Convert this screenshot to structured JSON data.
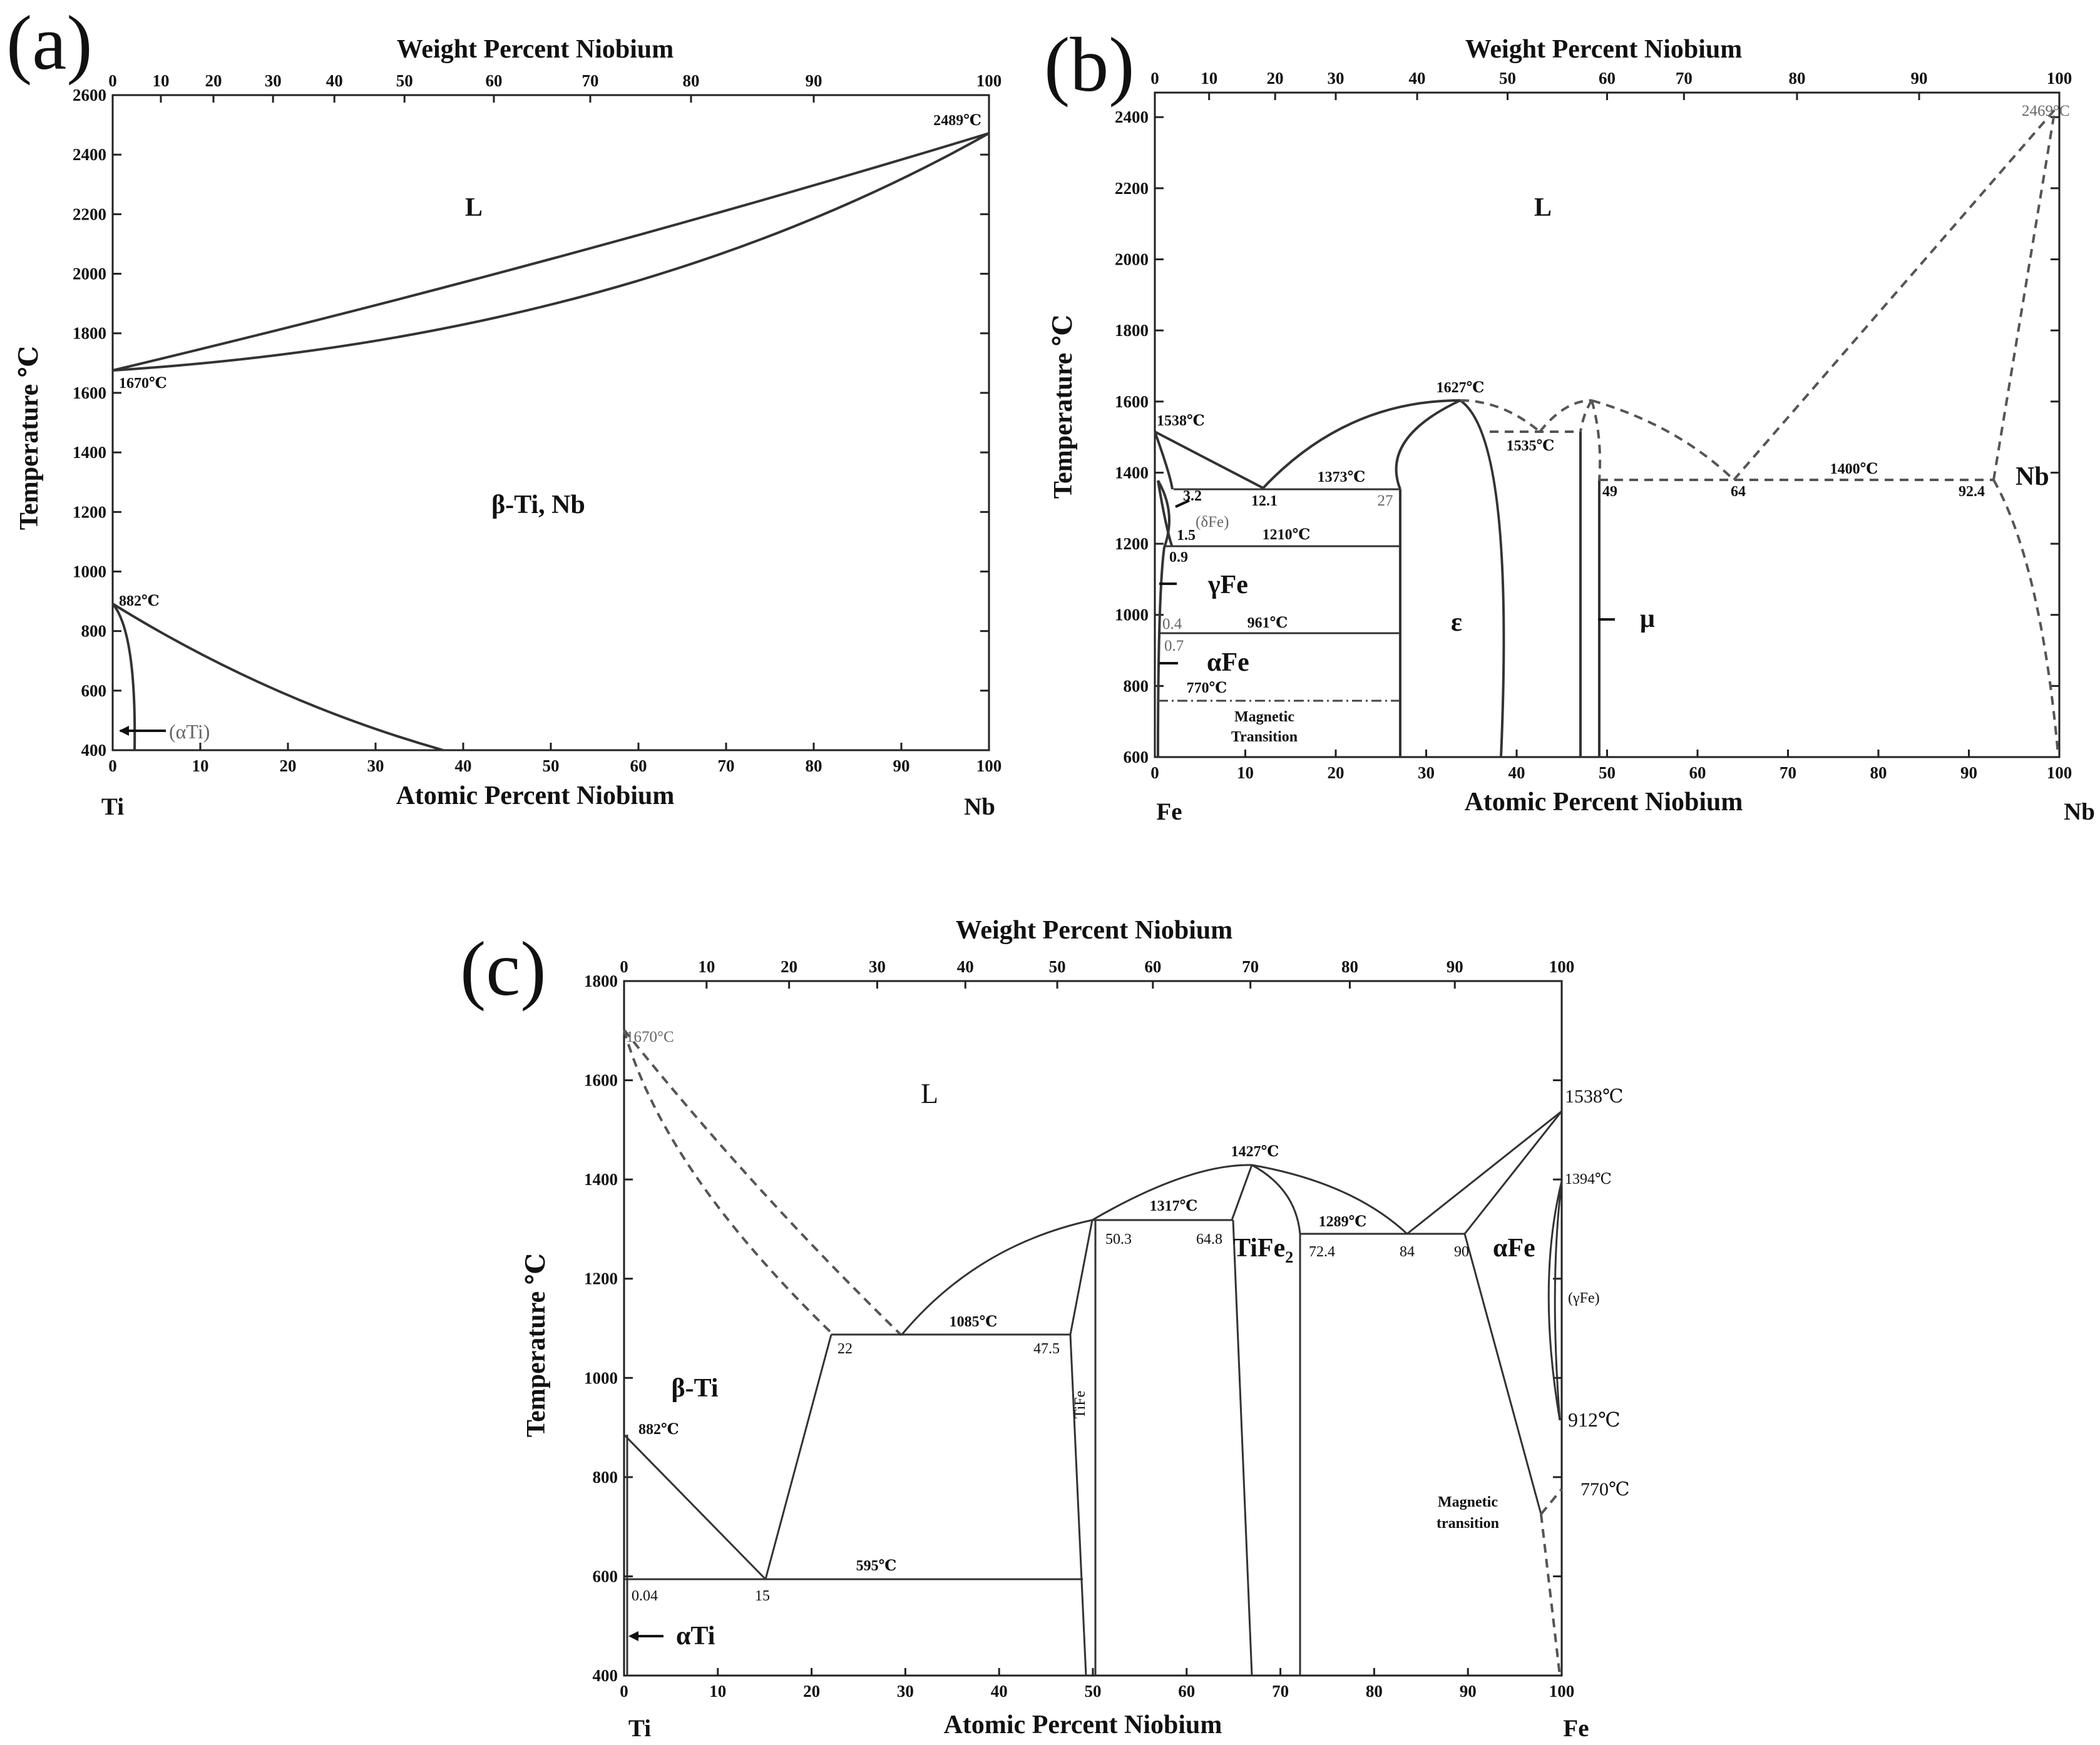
{
  "figure": {
    "panels": [
      {
        "id": "a",
        "label": "(a)",
        "top_axis_title": "Weight Percent Niobium",
        "bottom_axis_title": "Atomic Percent Niobium",
        "y_axis_title": "Temperature ℃",
        "left_element": "Ti",
        "right_element": "Nb",
        "x_ticks_bottom": [
          "0",
          "10",
          "20",
          "30",
          "40",
          "50",
          "60",
          "70",
          "80",
          "90",
          "100"
        ],
        "x_ticks_top": [
          "0",
          "10",
          "20",
          "30",
          "40",
          "50",
          "60",
          "70",
          "80",
          "90",
          "100"
        ],
        "y_ticks": [
          "400",
          "600",
          "800",
          "1000",
          "1200",
          "1400",
          "1600",
          "1800",
          "2000",
          "2200",
          "2400",
          "2600"
        ],
        "annotations": {
          "t2489": "2489℃",
          "t1670": "1670℃",
          "t882": "882℃",
          "alphaTi": "(αTi)"
        },
        "phases": {
          "liquid": "L",
          "beta": "β-Ti, Nb"
        }
      },
      {
        "id": "b",
        "label": "(b)",
        "top_axis_title": "Weight Percent Niobium",
        "bottom_axis_title": "Atomic Percent Niobium",
        "y_axis_title": "Temperature ℃",
        "left_element": "Fe",
        "right_element": "Nb",
        "x_ticks_bottom": [
          "0",
          "10",
          "20",
          "30",
          "40",
          "50",
          "60",
          "70",
          "80",
          "90",
          "100"
        ],
        "x_ticks_top": [
          "0",
          "10",
          "20",
          "30",
          "40",
          "50",
          "60",
          "70",
          "80",
          "90",
          "100"
        ],
        "y_ticks": [
          "600",
          "800",
          "1000",
          "1200",
          "1400",
          "1600",
          "1800",
          "2000",
          "2200",
          "2400"
        ],
        "annotations": {
          "t2469": "2469°C",
          "t1627": "1627℃",
          "t1538": "1538℃",
          "t1535": "1535℃",
          "t1373": "1373℃",
          "t1400": "1400℃",
          "t1210": "1210℃",
          "t961": "961℃",
          "t770": "770℃",
          "c3_2": "3.2",
          "c12_1": "12.1",
          "c27": "27",
          "c1_5": "1.5",
          "c0_9": "0.9",
          "c0_4": "0.4",
          "c0_7": "0.7",
          "c49": "49",
          "c64": "64",
          "c92_4": "92.4",
          "deltaFe": "(δFe)",
          "magnetic1": "Magnetic",
          "magnetic2": "Transition"
        },
        "phases": {
          "liquid": "L",
          "gammaFe": "γFe",
          "alphaFe": "αFe",
          "epsilon": "ε",
          "mu": "μ",
          "nb": "Nb"
        }
      },
      {
        "id": "c",
        "label": "(c)",
        "top_axis_title": "Weight Percent Niobium",
        "bottom_axis_title": "Atomic Percent Niobium",
        "y_axis_title": "Temperature ℃",
        "left_element": "Ti",
        "right_element": "Fe",
        "x_ticks_bottom": [
          "0",
          "10",
          "20",
          "30",
          "40",
          "50",
          "60",
          "70",
          "80",
          "90",
          "100"
        ],
        "x_ticks_top": [
          "0",
          "10",
          "20",
          "30",
          "40",
          "50",
          "60",
          "70",
          "80",
          "90",
          "100"
        ],
        "y_ticks": [
          "400",
          "600",
          "800",
          "1000",
          "1200",
          "1400",
          "1600",
          "1800"
        ],
        "annotations": {
          "t1670": "1670°C",
          "t1538": "1538℃",
          "t1394": "1394℃",
          "t1427": "1427℃",
          "t1317": "1317℃",
          "t1289": "1289℃",
          "t1085": "1085℃",
          "t882": "882℃",
          "t595": "595℃",
          "t912": "912℃",
          "t770": "770℃",
          "c50_3": "50.3",
          "c64_8": "64.8",
          "c72_4": "72.4",
          "c84": "84",
          "c90": "90",
          "c22": "22",
          "c47_5": "47.5",
          "c0_04": "0.04",
          "c15": "15",
          "gammaFe": "(γFe)",
          "magnetic1": "Magnetic",
          "magnetic2": "transition"
        },
        "phases": {
          "liquid": "L",
          "betaTi": "β-Ti",
          "alphaTi": "αTi",
          "tife": "TiFe",
          "tife2_base": "TiFe",
          "tife2_sub": "2",
          "alphaFe": "αFe"
        }
      }
    ]
  }
}
